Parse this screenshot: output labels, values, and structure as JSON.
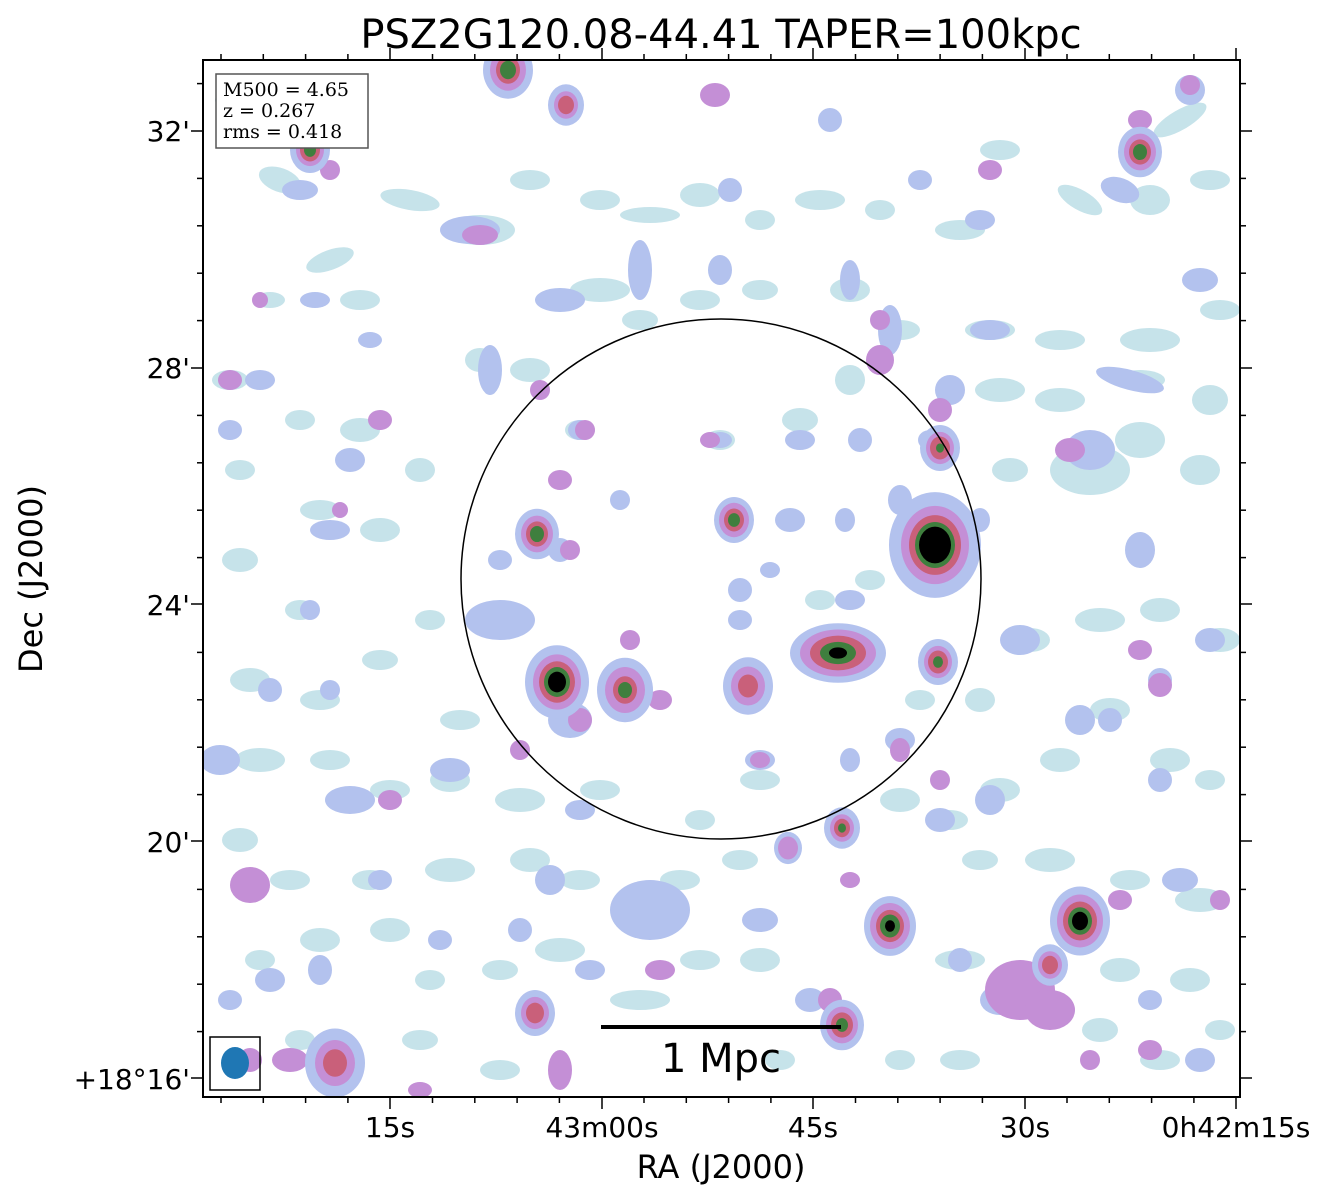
{
  "chart_data": {
    "type": "heatmap",
    "title": "PSZ2G120.08-44.41 TAPER=100kpc",
    "xlabel": "RA (J2000)",
    "ylabel": "Dec (J2000)",
    "x_ticks": [
      "15s",
      "43m00s",
      "45s",
      "30s",
      "0h42m15s"
    ],
    "y_ticks": [
      "32'",
      "28'",
      "24'",
      "20'",
      "+18°16'"
    ],
    "annotation": [
      "M500 = 4.65",
      "z = 0.267",
      "rms = 0.418"
    ],
    "scalebar_label": "1 Mpc",
    "colormap": "cubehelix_r",
    "colors": {
      "faint": "#c6e3ea",
      "low": "#b3c2ee",
      "mid": "#c48fd6",
      "high": "#c9607a",
      "higher": "#3f7f3e",
      "peak": "#000000",
      "beam": "#1f77b4",
      "circle": "#000000"
    }
  }
}
